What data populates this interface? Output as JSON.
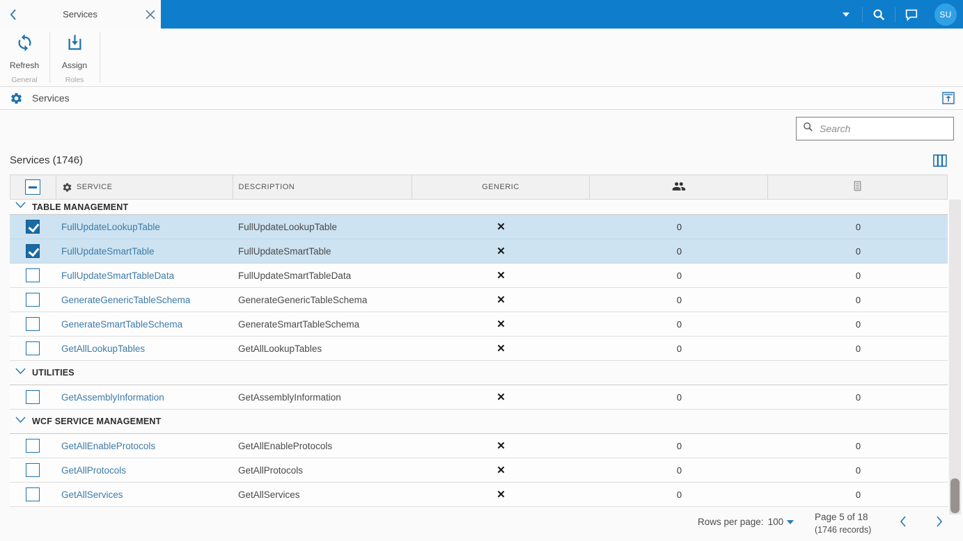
{
  "window": {
    "tab_title": "Services"
  },
  "topbar": {
    "avatar_initials": "SU"
  },
  "ribbon": {
    "groups": [
      {
        "label": "General",
        "buttons": [
          {
            "label": "Refresh",
            "icon": "refresh-icon"
          }
        ]
      },
      {
        "label": "Roles",
        "buttons": [
          {
            "label": "Assign",
            "icon": "assign-icon"
          }
        ]
      }
    ]
  },
  "titlebar": {
    "title": "Services"
  },
  "toolbar": {
    "search_placeholder": "Search"
  },
  "grid": {
    "title": "Services (1746)",
    "header": {
      "service": "SERVICE",
      "description": "DESCRIPTION",
      "generic": "GENERIC"
    },
    "glyphs": {
      "not_generic": "✕"
    },
    "groups": [
      {
        "name": "TABLE MANAGEMENT",
        "rows": [
          {
            "service": "FullUpdateLookupTable",
            "description": "FullUpdateLookupTable",
            "generic": false,
            "users": "0",
            "records": "0",
            "checked": true,
            "selected": true
          },
          {
            "service": "FullUpdateSmartTable",
            "description": "FullUpdateSmartTable",
            "generic": false,
            "users": "0",
            "records": "0",
            "checked": true,
            "selected": true
          },
          {
            "service": "FullUpdateSmartTableData",
            "description": "FullUpdateSmartTableData",
            "generic": false,
            "users": "0",
            "records": "0",
            "checked": false,
            "selected": false
          },
          {
            "service": "GenerateGenericTableSchema",
            "description": "GenerateGenericTableSchema",
            "generic": false,
            "users": "0",
            "records": "0",
            "checked": false,
            "selected": false
          },
          {
            "service": "GenerateSmartTableSchema",
            "description": "GenerateSmartTableSchema",
            "generic": false,
            "users": "0",
            "records": "0",
            "checked": false,
            "selected": false
          },
          {
            "service": "GetAllLookupTables",
            "description": "GetAllLookupTables",
            "generic": false,
            "users": "0",
            "records": "0",
            "checked": false,
            "selected": false
          }
        ]
      },
      {
        "name": "UTILITIES",
        "rows": [
          {
            "service": "GetAssemblyInformation",
            "description": "GetAssemblyInformation",
            "generic": false,
            "users": "0",
            "records": "0",
            "checked": false,
            "selected": false
          }
        ]
      },
      {
        "name": "WCF SERVICE MANAGEMENT",
        "rows": [
          {
            "service": "GetAllEnableProtocols",
            "description": "GetAllEnableProtocols",
            "generic": false,
            "users": "0",
            "records": "0",
            "checked": false,
            "selected": false
          },
          {
            "service": "GetAllProtocols",
            "description": "GetAllProtocols",
            "generic": false,
            "users": "0",
            "records": "0",
            "checked": false,
            "selected": false
          },
          {
            "service": "GetAllServices",
            "description": "GetAllServices",
            "generic": false,
            "users": "0",
            "records": "0",
            "checked": false,
            "selected": false
          }
        ]
      }
    ]
  },
  "pagination": {
    "rows_per_page_label": "Rows per page:",
    "rows_per_page_value": "100",
    "page_label": "Page 5 of 18",
    "records_label": "(1746 records)"
  }
}
